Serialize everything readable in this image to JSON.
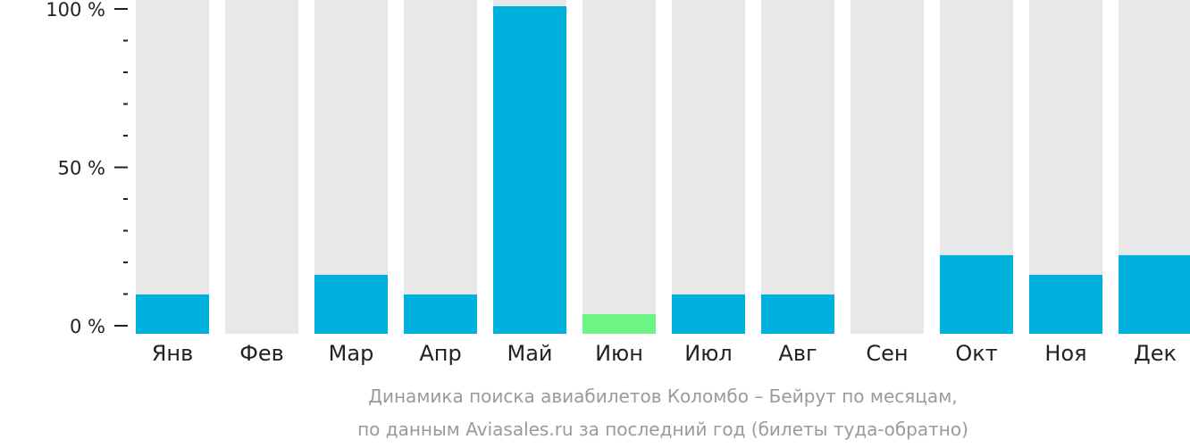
{
  "chart_data": {
    "type": "bar",
    "categories": [
      "Янв",
      "Фев",
      "Мар",
      "Апр",
      "Май",
      "Июн",
      "Июл",
      "Авг",
      "Сен",
      "Окт",
      "Ноя",
      "Дек"
    ],
    "values": [
      12,
      0,
      18,
      12,
      100,
      6,
      12,
      12,
      0,
      24,
      18,
      24
    ],
    "highlight_index": 5,
    "ylim": [
      0,
      100
    ],
    "y_ticks": [
      {
        "value": 0,
        "label": "0 %"
      },
      {
        "value": 50,
        "label": "50 %"
      },
      {
        "value": 100,
        "label": "100 %"
      }
    ],
    "minor_tick_step": 10,
    "caption_lines": [
      "Динамика поиска авиабилетов Коломбо – Бейрут по месяцам,",
      "по данным Aviasales.ru за последний год (билеты туда-обратно)"
    ],
    "colors": {
      "bar": "#00b1dd",
      "highlight": "#6cf584",
      "track": "#e8e8e8",
      "axis": "#222222",
      "caption": "#9a9a9a"
    }
  }
}
